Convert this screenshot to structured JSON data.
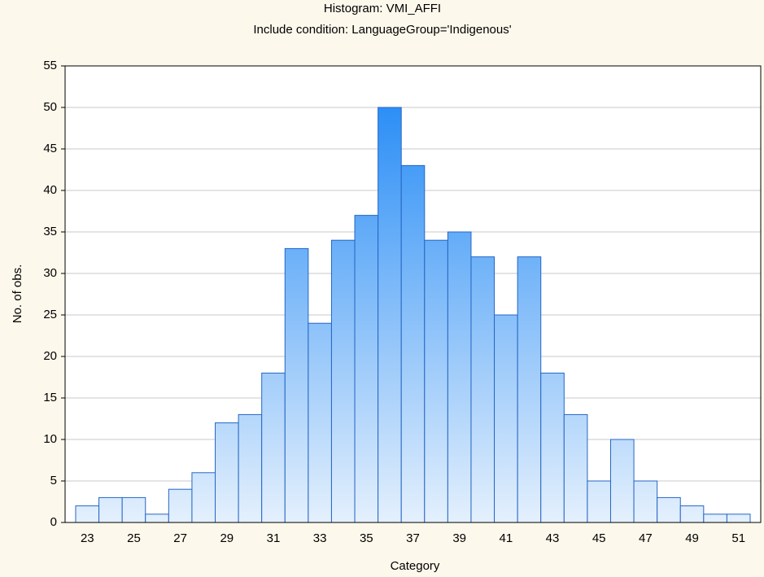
{
  "chart_data": {
    "type": "bar",
    "title": "Histogram: VMI_AFFI",
    "subtitle": "Include condition: LanguageGroup='Indigenous'",
    "x_label": "Category",
    "y_label": "No. of obs.",
    "categories": [
      23,
      null,
      25,
      null,
      27,
      null,
      29,
      null,
      31,
      null,
      33,
      null,
      35,
      null,
      37,
      null,
      39,
      null,
      41,
      null,
      43,
      null,
      45,
      null,
      47,
      null,
      49,
      null,
      51
    ],
    "values": [
      2,
      3,
      3,
      1,
      4,
      6,
      12,
      13,
      18,
      33,
      24,
      34,
      37,
      50,
      43,
      34,
      35,
      32,
      25,
      32,
      18,
      13,
      5,
      10,
      5,
      3,
      2,
      1,
      1
    ],
    "color": "#1a85f5",
    "gradient_bottom_color": "#e4f0fd",
    "edge_color": "#2566c4",
    "ylim": [
      0,
      55
    ],
    "yticks": [
      0,
      5,
      10,
      15,
      20,
      25,
      30,
      35,
      40,
      45,
      50,
      55
    ],
    "grid": true
  }
}
